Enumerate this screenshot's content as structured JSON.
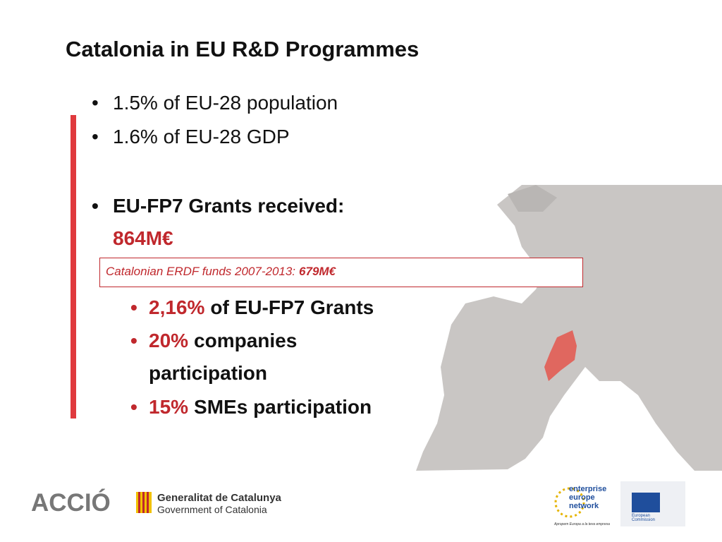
{
  "title": "Catalonia in EU R&D Programmes",
  "bullets": [
    "1.5% of EU-28 population",
    "1.6% of EU-28 GDP"
  ],
  "grants": {
    "label": "EU-FP7 Grants received:",
    "amount": "864M€"
  },
  "erdf_box": {
    "label": "Catalonian ERDF funds 2007-2013:",
    "amount": "679M€"
  },
  "sub_bullets": [
    {
      "highlight": "2,16%",
      "text": "of EU-FP7 Grants"
    },
    {
      "highlight": "20%",
      "text": "companies participation"
    },
    {
      "highlight": "15%",
      "text": "SMEs participation"
    }
  ],
  "footer": {
    "accio": "ACCIÓ",
    "generalitat": "Generalitat de Catalunya",
    "government": "Government of Catalonia",
    "een": [
      "enterprise",
      "europe",
      "network"
    ],
    "een_tagline": "Apropem Europa a la teva empresa",
    "ec": "European Commission"
  }
}
